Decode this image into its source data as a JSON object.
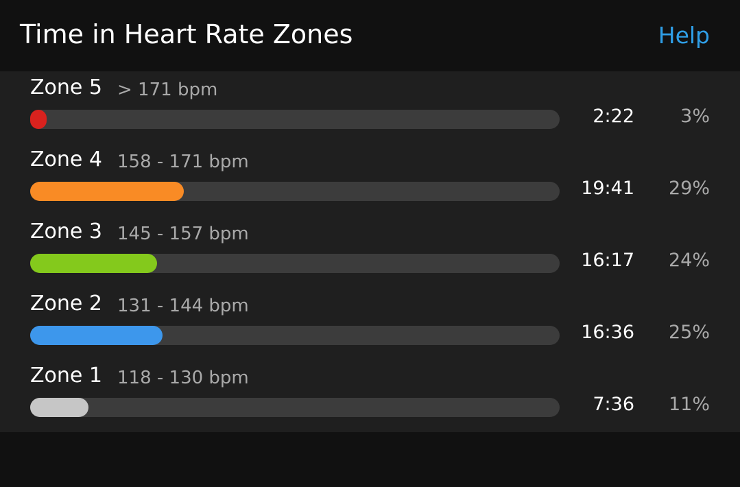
{
  "header": {
    "title": "Time in Heart Rate Zones",
    "help": "Help"
  },
  "chart_data": {
    "type": "bar",
    "categories": [
      "Zone 5",
      "Zone 4",
      "Zone 3",
      "Zone 2",
      "Zone 1"
    ],
    "ranges": [
      "> 171 bpm",
      "158 - 171 bpm",
      "145 - 157 bpm",
      "131 - 144 bpm",
      "118 - 130 bpm"
    ],
    "times": [
      "2:22",
      "19:41",
      "16:17",
      "16:36",
      "7:36"
    ],
    "values": [
      3,
      29,
      24,
      25,
      11
    ],
    "value_labels": [
      "3%",
      "29%",
      "24%",
      "25%",
      "11%"
    ],
    "colors": [
      "#d9221e",
      "#f98b25",
      "#84c91c",
      "#3d97ec",
      "#c6c6c6"
    ],
    "xlim": [
      0,
      100
    ]
  }
}
